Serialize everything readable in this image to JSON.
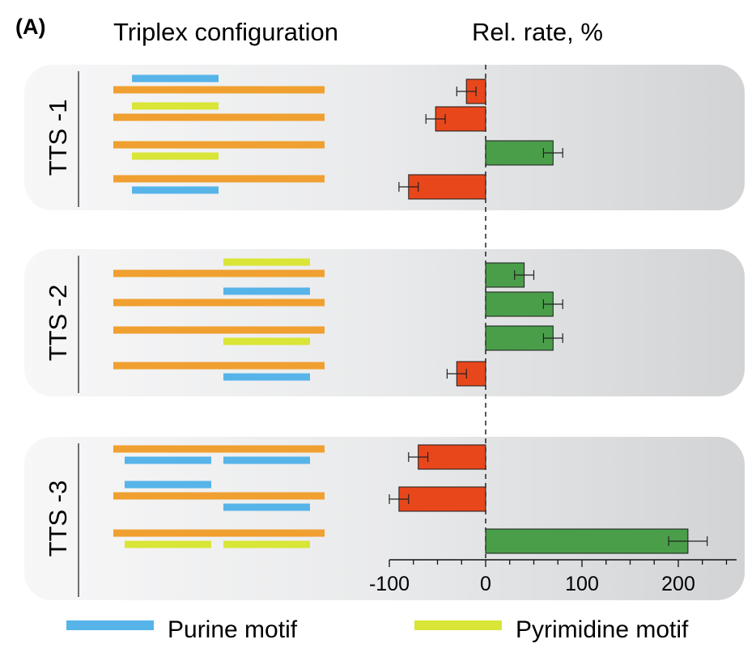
{
  "panel_label": "(A)",
  "headers": {
    "configuration": "Triplex configuration",
    "rate": "Rel. rate, %"
  },
  "legend": [
    {
      "name": "Purine motif",
      "color": "#56b4e9"
    },
    {
      "name": "Pyrimidine motif",
      "color": "#d9e537"
    }
  ],
  "colors": {
    "duplex_strand": "#f0a030",
    "purine": "#56b4e9",
    "pyrimidine": "#d9e537",
    "negative_bar": "#e8471c",
    "positive_bar": "#4a9e4a",
    "panel_bg": "#e4e5e6"
  },
  "chart_data": {
    "type": "bar",
    "orientation": "horizontal",
    "x_axis_label": "",
    "ticks": [
      -100,
      0,
      100,
      200
    ],
    "tick_labels": [
      "-100",
      "0",
      "100",
      "200"
    ],
    "xlim": [
      -100,
      260
    ],
    "groups": [
      {
        "name": "TTS -1",
        "rows": [
          {
            "value": -20,
            "error": 10,
            "motifs": [
              {
                "type": "purine",
                "position": "above",
                "segment": "left"
              }
            ]
          },
          {
            "value": -52,
            "error": 10,
            "motifs": [
              {
                "type": "pyrimidine",
                "position": "above",
                "segment": "left"
              }
            ]
          },
          {
            "value": 70,
            "error": 10,
            "motifs": [
              {
                "type": "pyrimidine",
                "position": "below",
                "segment": "left"
              }
            ]
          },
          {
            "value": -80,
            "error": 10,
            "motifs": [
              {
                "type": "purine",
                "position": "below",
                "segment": "left"
              }
            ]
          }
        ]
      },
      {
        "name": "TTS -2",
        "rows": [
          {
            "value": 40,
            "error": 10,
            "motifs": [
              {
                "type": "pyrimidine",
                "position": "above",
                "segment": "right"
              }
            ]
          },
          {
            "value": 70,
            "error": 10,
            "motifs": [
              {
                "type": "purine",
                "position": "above",
                "segment": "right"
              }
            ]
          },
          {
            "value": 70,
            "error": 10,
            "motifs": [
              {
                "type": "pyrimidine",
                "position": "below",
                "segment": "right"
              }
            ]
          },
          {
            "value": -30,
            "error": 10,
            "motifs": [
              {
                "type": "purine",
                "position": "below",
                "segment": "right"
              }
            ]
          }
        ]
      },
      {
        "name": "TTS -3",
        "rows": [
          {
            "value": -70,
            "error": 10,
            "motifs": [
              {
                "type": "purine",
                "position": "below",
                "segment": "left"
              },
              {
                "type": "purine",
                "position": "below",
                "segment": "right"
              }
            ]
          },
          {
            "value": -90,
            "error": 10,
            "motifs": [
              {
                "type": "purine",
                "position": "above",
                "segment": "left"
              },
              {
                "type": "purine",
                "position": "below",
                "segment": "right"
              }
            ]
          },
          {
            "value": 210,
            "error": 20,
            "motifs": [
              {
                "type": "pyrimidine",
                "position": "below",
                "segment": "left"
              },
              {
                "type": "pyrimidine",
                "position": "below",
                "segment": "right"
              }
            ]
          }
        ]
      }
    ]
  }
}
